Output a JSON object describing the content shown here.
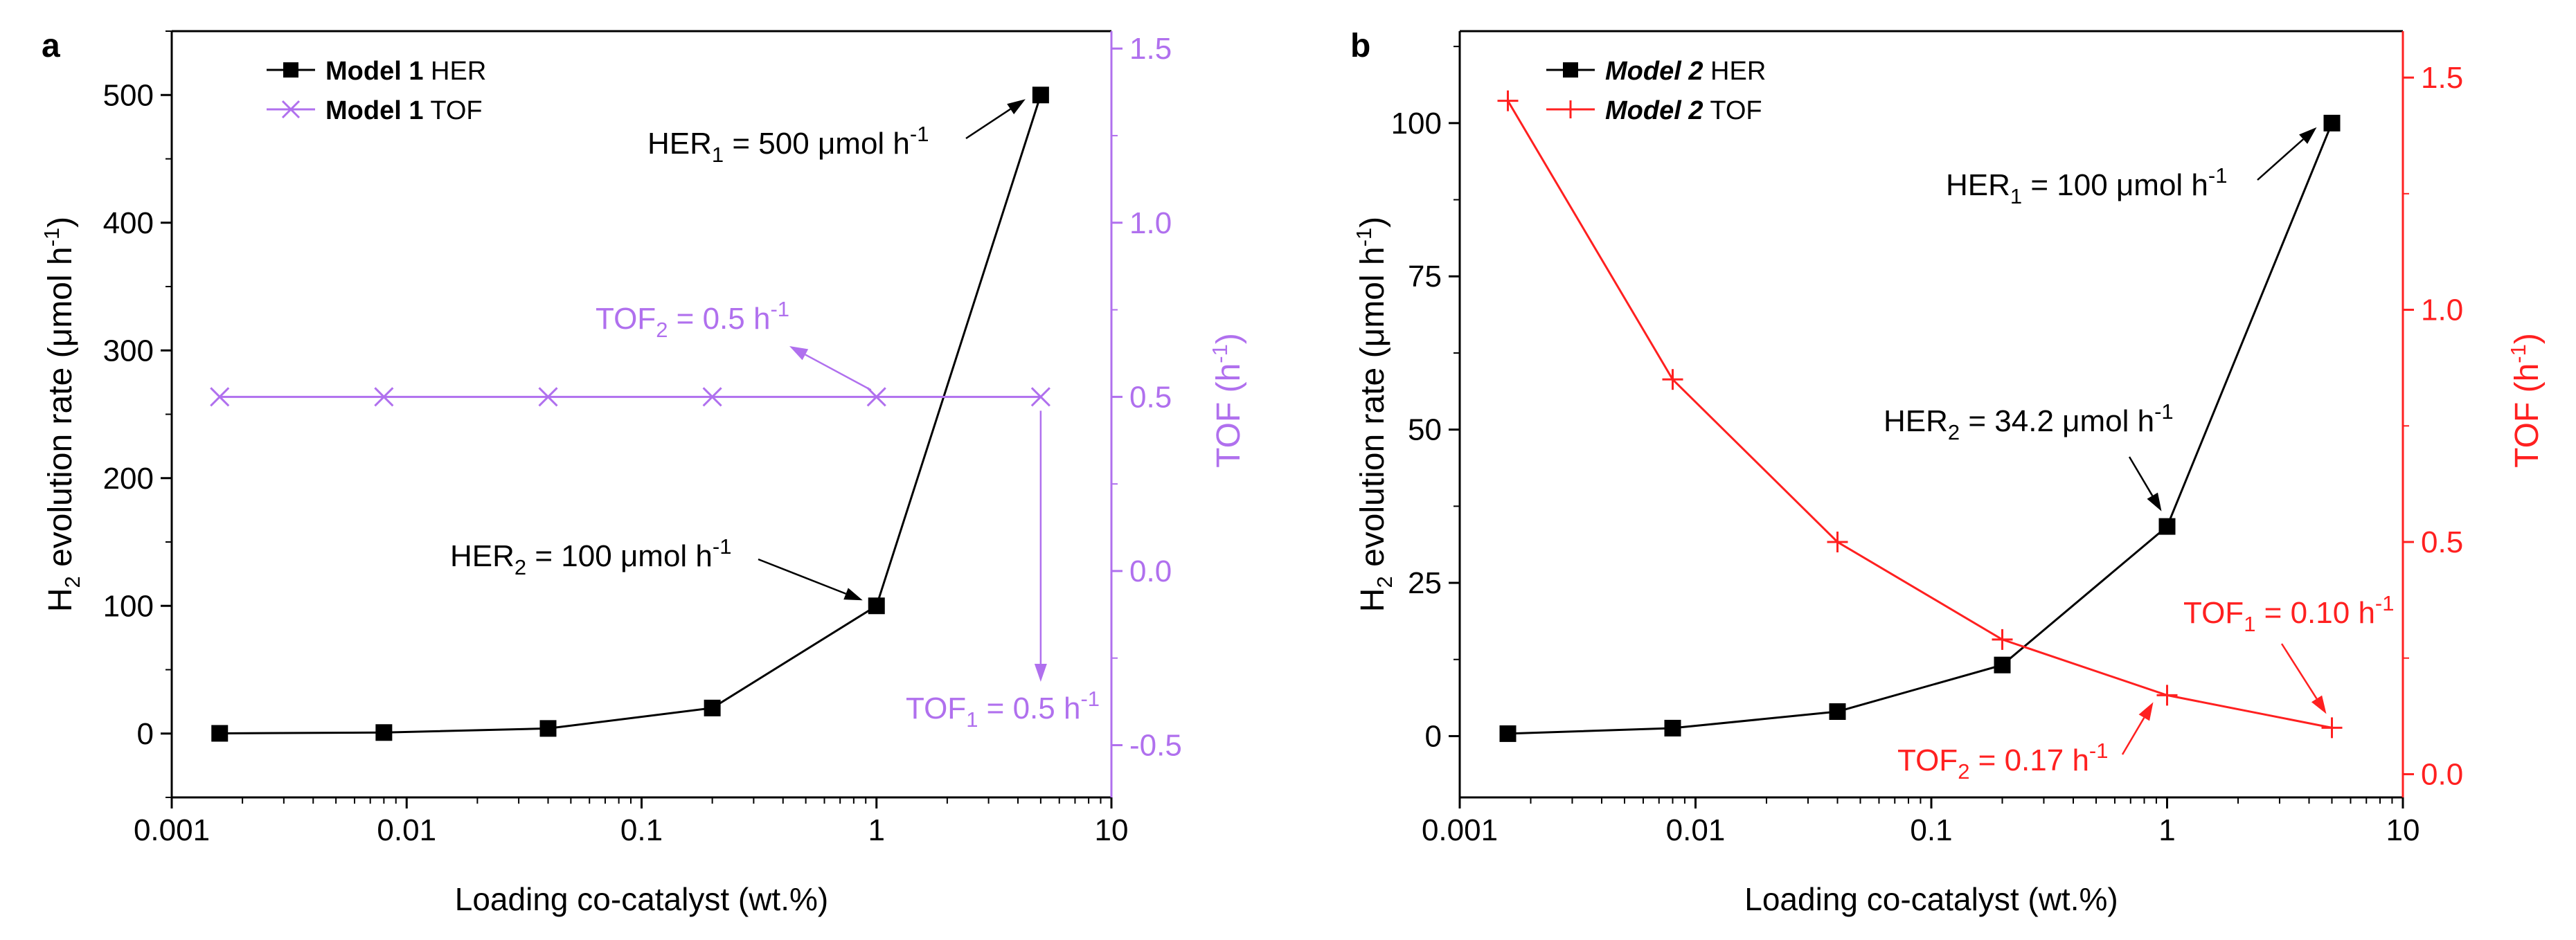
{
  "figure": {
    "panels": [
      {
        "panel_label": "a",
        "colors": {
          "her": "#000000",
          "tof": "#b070ee"
        },
        "legend": [
          {
            "bold": "Model 1",
            "rest": " HER",
            "italic": false
          },
          {
            "bold": "Model 1",
            "rest": " TOF",
            "italic": false
          }
        ],
        "xlabel": "Loading co-catalyst (wt.%)",
        "ylabel_left": {
          "pre": "H",
          "sub": "2",
          "mid": " evolution rate (μmol h",
          "sup": "-1",
          "post": ")"
        },
        "ylabel_right": {
          "pre": "TOF (h",
          "sup": "-1",
          "post": ")"
        },
        "x_ticks": [
          "0.001",
          "0.01",
          "0.1",
          "1",
          "10"
        ],
        "y_left_ticks": [
          "0",
          "100",
          "200",
          "300",
          "400",
          "500"
        ],
        "y_right_ticks": [
          "-0.5",
          "0.0",
          "0.5",
          "1.0",
          "1.5"
        ],
        "annotations": [
          {
            "pre": "HER",
            "sub": "1",
            "mid": " = 500 μmol h",
            "sup": "-1",
            "post": "",
            "color": "#000000"
          },
          {
            "pre": "HER",
            "sub": "2",
            "mid": " = 100 μmol h",
            "sup": "-1",
            "post": "",
            "color": "#000000"
          },
          {
            "pre": "TOF",
            "sub": "2",
            "mid": " = 0.5 h",
            "sup": "-1",
            "post": "",
            "color": "#b070ee"
          },
          {
            "pre": "TOF",
            "sub": "1",
            "mid": " = 0.5 h",
            "sup": "-1",
            "post": "",
            "color": "#b070ee"
          }
        ]
      },
      {
        "panel_label": "b",
        "colors": {
          "her": "#000000",
          "tof": "#ff2020"
        },
        "legend": [
          {
            "bold": "Model 2",
            "rest": " HER",
            "italic": true
          },
          {
            "bold": "Model 2",
            "rest": " TOF",
            "italic": true
          }
        ],
        "xlabel": "Loading co-catalyst (wt.%)",
        "ylabel_left": {
          "pre": "H",
          "sub": "2",
          "mid": " evolution rate (μmol h",
          "sup": "-1",
          "post": ")"
        },
        "ylabel_right": {
          "pre": "TOF (h",
          "sup": "-1",
          "post": ")"
        },
        "x_ticks": [
          "0.001",
          "0.01",
          "0.1",
          "1",
          "10"
        ],
        "y_left_ticks": [
          "0",
          "25",
          "50",
          "75",
          "100"
        ],
        "y_right_ticks": [
          "0.0",
          "0.5",
          "1.0",
          "1.5"
        ],
        "annotations": [
          {
            "pre": "HER",
            "sub": "1",
            "mid": " = 100 μmol h",
            "sup": "-1",
            "post": "",
            "color": "#000000"
          },
          {
            "pre": "HER",
            "sub": "2",
            "mid": " = 34.2 μmol h",
            "sup": "-1",
            "post": "",
            "color": "#000000"
          },
          {
            "pre": "TOF",
            "sub": "1",
            "mid": " = 0.10 h",
            "sup": "-1",
            "post": "",
            "color": "#ff2020"
          },
          {
            "pre": "TOF",
            "sub": "2",
            "mid": " = 0.17 h",
            "sup": "-1",
            "post": "",
            "color": "#ff2020"
          }
        ]
      }
    ]
  },
  "chart_data": [
    {
      "type": "line",
      "title": "a",
      "xlabel": "Loading co-catalyst (wt.%)",
      "ylabel": "H2 evolution rate (μmol h-1)",
      "y2label": "TOF (h-1)",
      "xscale": "log",
      "xlim": [
        0.001,
        10
      ],
      "ylim": [
        -50,
        550
      ],
      "y2lim": [
        -0.65,
        1.55
      ],
      "series": [
        {
          "name": "Model 1 HER",
          "axis": "left",
          "marker": "square",
          "x": [
            0.0016,
            0.008,
            0.04,
            0.2,
            1,
            5
          ],
          "values": [
            0.16,
            0.8,
            4,
            20,
            100,
            500
          ]
        },
        {
          "name": "Model 1 TOF",
          "axis": "right",
          "marker": "x",
          "x": [
            0.0016,
            0.008,
            0.04,
            0.2,
            1,
            5
          ],
          "values": [
            0.5,
            0.5,
            0.5,
            0.5,
            0.5,
            0.5
          ]
        }
      ],
      "legend_position": "top-left"
    },
    {
      "type": "line",
      "title": "b",
      "xlabel": "Loading co-catalyst (wt.%)",
      "ylabel": "H2 evolution rate (μmol h-1)",
      "y2label": "TOF (h-1)",
      "xscale": "log",
      "xlim": [
        0.001,
        10
      ],
      "ylim": [
        -10,
        115
      ],
      "y2lim": [
        -0.05,
        1.6
      ],
      "series": [
        {
          "name": "Model 2 HER",
          "axis": "left",
          "marker": "square",
          "x": [
            0.0016,
            0.008,
            0.04,
            0.2,
            1,
            5
          ],
          "values": [
            0.4,
            1.3,
            4,
            11.6,
            34.2,
            100
          ]
        },
        {
          "name": "Model 2 TOF",
          "axis": "right",
          "marker": "plus",
          "x": [
            0.0016,
            0.008,
            0.04,
            0.2,
            1,
            5
          ],
          "values": [
            1.45,
            0.85,
            0.5,
            0.29,
            0.17,
            0.1
          ]
        }
      ],
      "legend_position": "top-left"
    }
  ]
}
